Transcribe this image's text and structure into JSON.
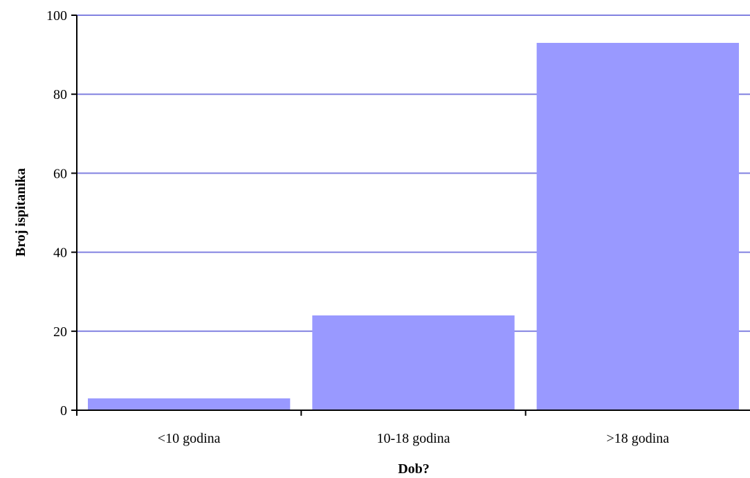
{
  "chart_data": {
    "type": "bar",
    "title": "",
    "xlabel": "Dob?",
    "ylabel": "Broj ispitanika",
    "categories": [
      "<10 godina",
      "10-18 godina",
      ">18 godina"
    ],
    "values": [
      3,
      24,
      93
    ],
    "ylim": [
      0,
      100
    ],
    "yticks": [
      0,
      20,
      40,
      60,
      80,
      100
    ],
    "grid": true,
    "legend": "none",
    "colors": {
      "bar": "#9999FF",
      "grid": "#8080E0",
      "axis": "#000000"
    }
  }
}
